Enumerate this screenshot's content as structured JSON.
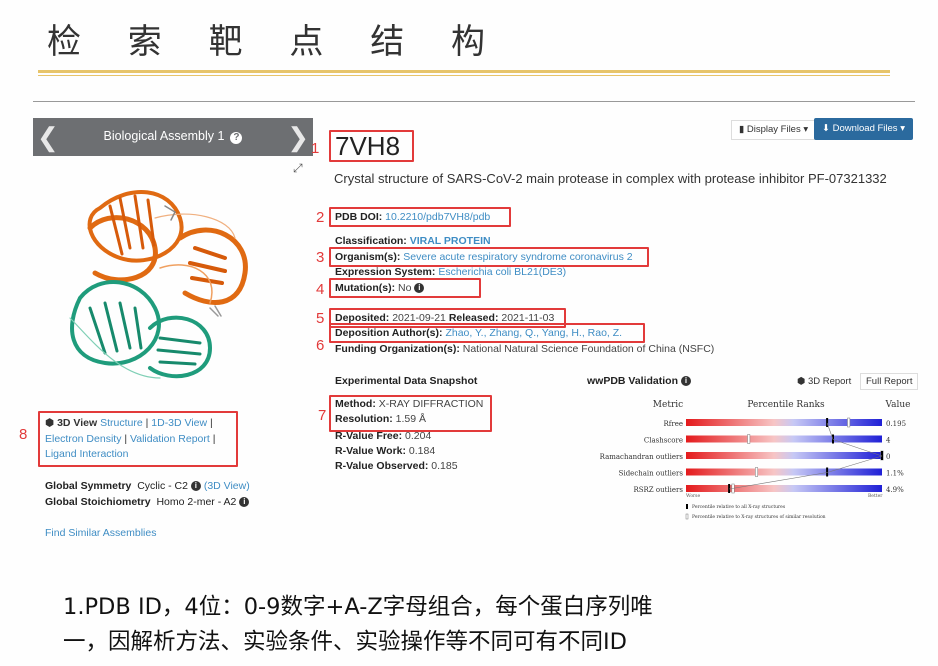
{
  "slide": {
    "title": "检 索 靶 点 结 构",
    "caption_line1": "1.PDB ID，4位：0-9数字+A-Z字母组合，每个蛋白序列唯",
    "caption_line2": "一，因解析方法、实验条件、实验操作等不同可有不同ID"
  },
  "colors": {
    "accent_red": "#e23a3a",
    "link_blue": "#3f8dc4",
    "download_btn": "#2b6a9e",
    "gold_rule": "#e7c46a"
  },
  "left": {
    "assembly_label": "Biological Assembly 1",
    "help_glyph": "?",
    "prev_glyph": "❮",
    "next_glyph": "❯",
    "expand_glyph": "⤢",
    "view_3d_label": "3D View",
    "view_links": [
      "Structure",
      "1D-3D View",
      "Electron Density",
      "Validation Report",
      "Ligand Interaction"
    ],
    "global_symmetry_label": "Global Symmetry",
    "global_symmetry_value": "Cyclic - C2",
    "global_symmetry_link": "(3D View)",
    "global_stoich_label": "Global Stoichiometry",
    "global_stoich_value": "Homo 2-mer - A2",
    "find_similar": "Find Similar Assemblies"
  },
  "header": {
    "display_files": "Display Files",
    "download_files": "Download Files",
    "pdb_id": "7VH8",
    "description": "Crystal structure of SARS-CoV-2 main protease in complex with protease inhibitor PF-07321332"
  },
  "fields": {
    "doi_label": "PDB DOI:",
    "doi_value": "10.2210/pdb7VH8/pdb",
    "classification_label": "Classification:",
    "classification_value": "VIRAL PROTEIN",
    "organism_label": "Organism(s):",
    "organism_value": "Severe acute respiratory syndrome coronavirus 2",
    "expression_label": "Expression System:",
    "expression_value": "Escherichia coli BL21(DE3)",
    "mutation_label": "Mutation(s):",
    "mutation_value": "No",
    "deposited_label": "Deposited:",
    "deposited_value": "2021-09-21",
    "released_label": "Released:",
    "released_value": "2021-11-03",
    "authors_label": "Deposition Author(s):",
    "authors_value": "Zhao, Y., Zhang, Q., Yang, H., Rao, Z.",
    "funding_label": "Funding Organization(s):",
    "funding_value": "National Natural Science Foundation of China (NSFC)"
  },
  "experimental": {
    "title": "Experimental Data Snapshot",
    "method_label": "Method:",
    "method_value": "X-RAY DIFFRACTION",
    "resolution_label": "Resolution:",
    "resolution_value": "1.59 Å",
    "rfree_label": "R-Value Free:",
    "rfree_value": "0.204",
    "rwork_label": "R-Value Work:",
    "rwork_value": "0.184",
    "robs_label": "R-Value Observed:",
    "robs_value": "0.185"
  },
  "validation": {
    "title": "wwPDB Validation",
    "report_3d": "3D Report",
    "full_report": "Full Report",
    "header_metric": "Metric",
    "header_percentile": "Percentile Ranks",
    "header_value": "Value",
    "rows": [
      {
        "metric": "Rfree",
        "value": "0.195",
        "percentile_all": 0.72,
        "percentile_similar": 0.83
      },
      {
        "metric": "Clashscore",
        "value": "4",
        "percentile_all": 0.75,
        "percentile_similar": 0.32
      },
      {
        "metric": "Ramachandran outliers",
        "value": "0",
        "percentile_all": 1.0,
        "percentile_similar": 1.0
      },
      {
        "metric": "Sidechain outliers",
        "value": "1.1%",
        "percentile_all": 0.72,
        "percentile_similar": 0.36
      },
      {
        "metric": "RSRZ outliers",
        "value": "4.9%",
        "percentile_all": 0.22,
        "percentile_similar": 0.24
      }
    ],
    "worse": "Worse",
    "better": "Better",
    "legend_all": "Percentile relative to all X-ray structures",
    "legend_similar": "Percentile relative to X-ray structures of similar resolution"
  },
  "annotations": [
    "1",
    "2",
    "3",
    "4",
    "5",
    "6",
    "7",
    "8"
  ]
}
